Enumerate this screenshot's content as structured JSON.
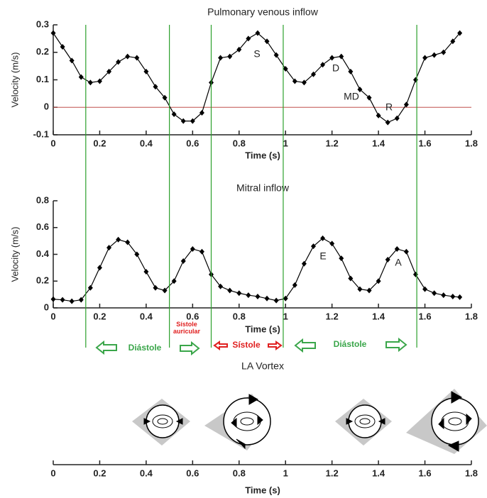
{
  "chart_data": [
    {
      "type": "line",
      "title": "Pulmonary venous inflow",
      "xlabel": "Time (s)",
      "ylabel": "Velocity (m/s)",
      "x": [
        0,
        0.04,
        0.08,
        0.12,
        0.16,
        0.2,
        0.24,
        0.28,
        0.32,
        0.36,
        0.4,
        0.44,
        0.48,
        0.52,
        0.56,
        0.6,
        0.64,
        0.68,
        0.72,
        0.76,
        0.8,
        0.84,
        0.88,
        0.92,
        0.96,
        1.0,
        1.04,
        1.08,
        1.12,
        1.16,
        1.2,
        1.24,
        1.28,
        1.32,
        1.36,
        1.4,
        1.44,
        1.48,
        1.52,
        1.56,
        1.6,
        1.64,
        1.68,
        1.72,
        1.75
      ],
      "series": [
        {
          "color": "#000000",
          "values": [
            0.27,
            0.22,
            0.17,
            0.11,
            0.09,
            0.095,
            0.13,
            0.165,
            0.185,
            0.18,
            0.13,
            0.075,
            0.035,
            -0.025,
            -0.05,
            -0.05,
            -0.02,
            0.09,
            0.18,
            0.185,
            0.21,
            0.25,
            0.27,
            0.24,
            0.19,
            0.14,
            0.095,
            0.09,
            0.12,
            0.155,
            0.18,
            0.185,
            0.13,
            0.065,
            0.035,
            -0.03,
            -0.055,
            -0.04,
            0.01,
            0.1,
            0.18,
            0.19,
            0.2,
            0.24,
            0.27
          ]
        }
      ],
      "xlim": [
        0,
        1.8
      ],
      "ylim": [
        -0.1,
        0.3
      ],
      "xticks": [
        0,
        0.2,
        0.4,
        0.6,
        0.8,
        1,
        1.2,
        1.4,
        1.6,
        1.8
      ],
      "yticks": [
        -0.1,
        0,
        0.1,
        0.2,
        0.3
      ],
      "reference_line": {
        "value": 0,
        "color": "#c0504d"
      },
      "annotations": [
        "S",
        "D",
        "MD",
        "R"
      ]
    },
    {
      "type": "line",
      "title": "Mitral inflow",
      "xlabel": "Time (s)",
      "ylabel": "Velocity (m/s)",
      "x": [
        0,
        0.04,
        0.08,
        0.12,
        0.16,
        0.2,
        0.24,
        0.28,
        0.32,
        0.36,
        0.4,
        0.44,
        0.48,
        0.52,
        0.56,
        0.6,
        0.64,
        0.68,
        0.72,
        0.76,
        0.8,
        0.84,
        0.88,
        0.92,
        0.96,
        1.0,
        1.04,
        1.08,
        1.12,
        1.16,
        1.2,
        1.24,
        1.28,
        1.32,
        1.36,
        1.4,
        1.44,
        1.48,
        1.52,
        1.56,
        1.6,
        1.64,
        1.68,
        1.72,
        1.75
      ],
      "series": [
        {
          "color": "#000000",
          "values": [
            0.065,
            0.06,
            0.05,
            0.06,
            0.15,
            0.3,
            0.45,
            0.51,
            0.49,
            0.4,
            0.27,
            0.15,
            0.13,
            0.2,
            0.35,
            0.44,
            0.42,
            0.25,
            0.16,
            0.13,
            0.11,
            0.095,
            0.085,
            0.07,
            0.055,
            0.07,
            0.17,
            0.33,
            0.46,
            0.52,
            0.48,
            0.37,
            0.22,
            0.14,
            0.13,
            0.2,
            0.36,
            0.44,
            0.42,
            0.25,
            0.14,
            0.11,
            0.095,
            0.085,
            0.08
          ]
        }
      ],
      "xlim": [
        0,
        1.8
      ],
      "ylim": [
        0,
        0.8
      ],
      "xticks": [
        0,
        0.2,
        0.4,
        0.6,
        0.8,
        1,
        1.2,
        1.4,
        1.6,
        1.8
      ],
      "yticks": [
        0,
        0.2,
        0.4,
        0.6,
        0.8
      ],
      "annotations": [
        "E",
        "A"
      ]
    },
    {
      "type": "vortex",
      "title": "LA Vortex",
      "xlabel": "Time (s)",
      "xlim": [
        0,
        1.8
      ],
      "xticks": [
        0,
        0.2,
        0.4,
        0.6,
        0.8,
        1,
        1.2,
        1.4,
        1.6,
        1.8
      ]
    }
  ],
  "phase_lines": {
    "color": "#2ca02c",
    "x": [
      0.14,
      0.5,
      0.68,
      0.99,
      1.565
    ]
  },
  "phase_labels": [
    {
      "text": "Diástole",
      "color": "#3aa64a"
    },
    {
      "text": "Sístole auricular",
      "color": "#e02020"
    },
    {
      "text": "Sístole",
      "color": "#e02020"
    },
    {
      "text": "Diástole",
      "color": "#3aa64a"
    }
  ]
}
